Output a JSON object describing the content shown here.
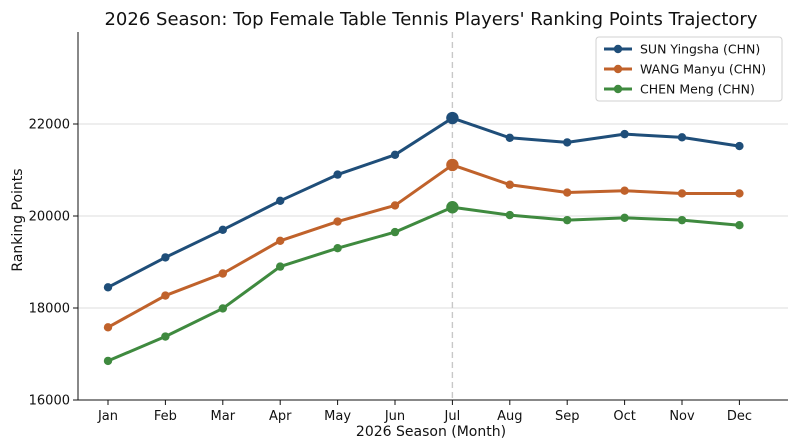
{
  "chart_data": {
    "type": "line",
    "title": "2026 Season: Top Female Table Tennis Players' Ranking Points Trajectory",
    "xlabel": "2026 Season (Month)",
    "ylabel": "Ranking Points",
    "categories": [
      "Jan",
      "Feb",
      "Mar",
      "Apr",
      "May",
      "Jun",
      "Jul",
      "Aug",
      "Sep",
      "Oct",
      "Nov",
      "Dec"
    ],
    "ylim": [
      16000,
      24000
    ],
    "yticks": [
      16000,
      18000,
      20000,
      22000
    ],
    "y_grid": true,
    "legend_position": "top-right",
    "highlight_category": "Jul",
    "series": [
      {
        "name": "SUN Yingsha (CHN)",
        "color": "#1f4e79",
        "values": [
          18450,
          19100,
          19700,
          20330,
          20900,
          21330,
          22130,
          21700,
          21600,
          21780,
          21710,
          21520
        ]
      },
      {
        "name": "WANG Manyu (CHN)",
        "color": "#c0622b",
        "values": [
          17580,
          18270,
          18750,
          19460,
          19880,
          20230,
          21110,
          20680,
          20510,
          20550,
          20490,
          20490
        ]
      },
      {
        "name": "CHEN Meng (CHN)",
        "color": "#3f8a3f",
        "values": [
          16850,
          17380,
          17990,
          18900,
          19300,
          19650,
          20190,
          20020,
          19910,
          19960,
          19910,
          19800
        ]
      }
    ]
  }
}
